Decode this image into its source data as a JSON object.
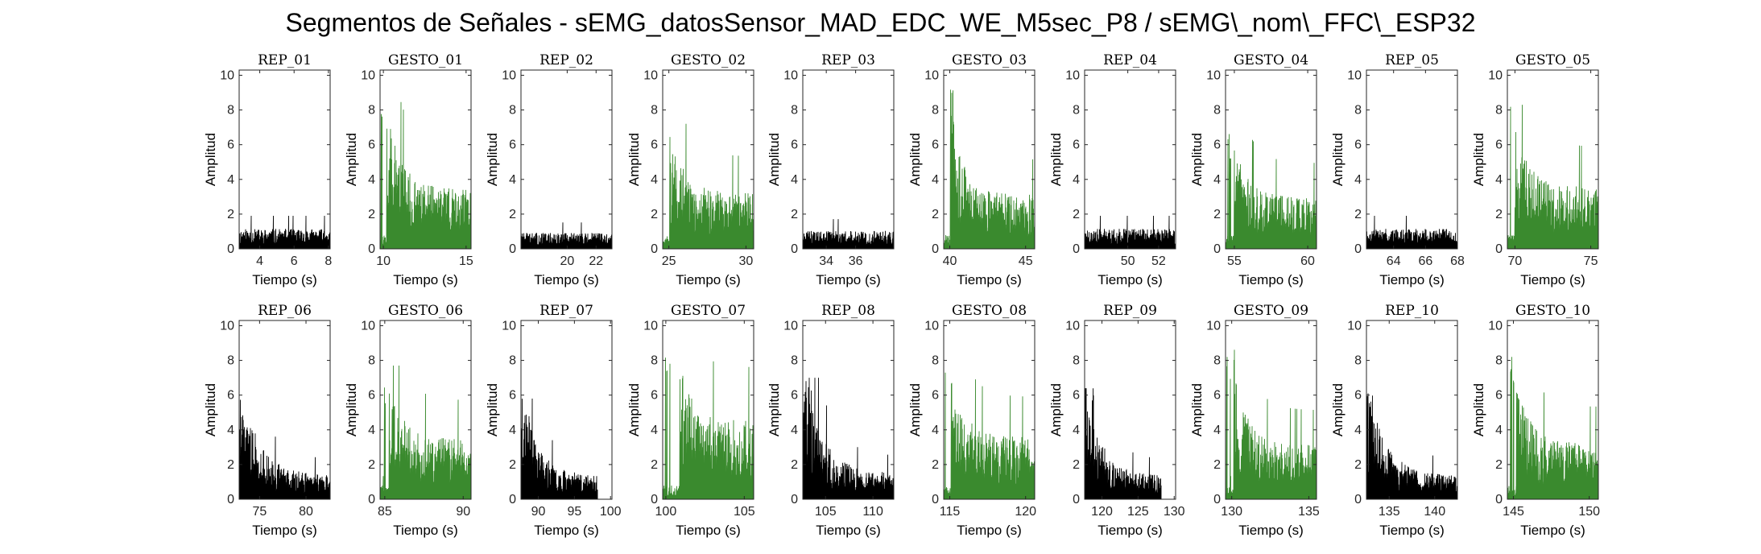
{
  "figure": {
    "title": "Segmentos de Señales - sEMG_datosSensor_MAD_EDC_WE_M5sec_P8 / sEMG\\_nom\\_FFC\\_ESP32"
  },
  "chart_data": {
    "type": "bar",
    "xlabel": "Tiempo (s)",
    "ylabel": "Amplitud",
    "ylim": [
      0,
      10.3
    ],
    "yticks": [
      0,
      2,
      4,
      6,
      8,
      10
    ],
    "grid": false,
    "colors": {
      "rep": "#000000",
      "gesto": "#3a8a2e"
    },
    "panels": [
      {
        "title": "REP_01",
        "kind": "rep",
        "xlim": [
          2.8,
          8.1
        ],
        "xticks": [
          4,
          6,
          8
        ],
        "signal": {
          "start": 2.8,
          "end": 8.1,
          "profile": "flat",
          "base": 1.0,
          "peak": 1.9,
          "seed": 11
        }
      },
      {
        "title": "GESTO_01",
        "kind": "gesto",
        "xlim": [
          9.8,
          15.3
        ],
        "xticks": [
          10,
          15
        ],
        "signal": {
          "start": 9.8,
          "end": 15.3,
          "profile": "gesture",
          "onset": 10.2,
          "base": 3.0,
          "peak": 9.7,
          "seed": 12
        }
      },
      {
        "title": "REP_02",
        "kind": "rep",
        "xlim": [
          16.8,
          23.1
        ],
        "xticks": [
          20,
          22
        ],
        "signal": {
          "start": 16.8,
          "end": 23.1,
          "profile": "flat",
          "base": 0.8,
          "peak": 2.4,
          "seed": 13
        }
      },
      {
        "title": "GESTO_02",
        "kind": "gesto",
        "xlim": [
          24.6,
          30.5
        ],
        "xticks": [
          25,
          30
        ],
        "signal": {
          "start": 24.6,
          "end": 30.5,
          "profile": "gesture",
          "onset": 25.1,
          "base": 2.8,
          "peak": 7.9,
          "seed": 14
        }
      },
      {
        "title": "REP_03",
        "kind": "rep",
        "xlim": [
          32.4,
          38.6
        ],
        "xticks": [
          34,
          36
        ],
        "signal": {
          "start": 32.4,
          "end": 38.6,
          "profile": "flat",
          "base": 0.9,
          "peak": 2.3,
          "seed": 15
        }
      },
      {
        "title": "GESTO_03",
        "kind": "gesto",
        "xlim": [
          39.6,
          45.6
        ],
        "xticks": [
          40,
          45
        ],
        "signal": {
          "start": 39.6,
          "end": 45.6,
          "profile": "gesture",
          "onset": 40.1,
          "base": 2.7,
          "peak": 10.0,
          "seed": 16
        }
      },
      {
        "title": "REP_04",
        "kind": "rep",
        "xlim": [
          47.2,
          53.1
        ],
        "xticks": [
          50,
          52
        ],
        "signal": {
          "start": 47.2,
          "end": 53.1,
          "profile": "flat",
          "base": 1.0,
          "peak": 2.4,
          "seed": 17
        }
      },
      {
        "title": "GESTO_04",
        "kind": "gesto",
        "xlim": [
          54.4,
          60.6
        ],
        "xticks": [
          55,
          60
        ],
        "signal": {
          "start": 54.4,
          "end": 60.6,
          "profile": "gesture",
          "onset": 55.0,
          "base": 2.6,
          "peak": 7.0,
          "seed": 18
        }
      },
      {
        "title": "REP_05",
        "kind": "rep",
        "xlim": [
          62.3,
          68.0
        ],
        "xticks": [
          64,
          66,
          68
        ],
        "signal": {
          "start": 62.3,
          "end": 68.0,
          "profile": "flat",
          "base": 1.0,
          "peak": 2.4,
          "seed": 19
        }
      },
      {
        "title": "GESTO_05",
        "kind": "gesto",
        "xlim": [
          69.5,
          75.5
        ],
        "xticks": [
          70,
          75
        ],
        "signal": {
          "start": 69.5,
          "end": 75.5,
          "profile": "gesture",
          "onset": 70.0,
          "base": 3.1,
          "peak": 8.3,
          "seed": 20
        }
      },
      {
        "title": "REP_06",
        "kind": "rep",
        "xlim": [
          72.8,
          82.6
        ],
        "xticks": [
          75,
          80
        ],
        "signal": {
          "start": 72.8,
          "end": 82.6,
          "profile": "decay",
          "base": 1.2,
          "peak": 6.3,
          "seed": 21
        }
      },
      {
        "title": "GESTO_06",
        "kind": "gesto",
        "xlim": [
          84.7,
          90.5
        ],
        "xticks": [
          85,
          90
        ],
        "signal": {
          "start": 84.7,
          "end": 90.5,
          "profile": "gesture",
          "onset": 85.3,
          "base": 3.0,
          "peak": 7.7,
          "seed": 22
        }
      },
      {
        "title": "REP_07",
        "kind": "rep",
        "xlim": [
          87.6,
          100.2
        ],
        "xticks": [
          90,
          95,
          100
        ],
        "signal": {
          "start": 87.6,
          "end": 98.2,
          "profile": "decay",
          "base": 1.2,
          "peak": 5.8,
          "seed": 23
        }
      },
      {
        "title": "GESTO_07",
        "kind": "gesto",
        "xlim": [
          99.8,
          105.6
        ],
        "xticks": [
          100,
          105
        ],
        "signal": {
          "start": 99.8,
          "end": 105.6,
          "profile": "gesture",
          "onset": 100.9,
          "base": 4.0,
          "peak": 8.6,
          "seed": 24
        }
      },
      {
        "title": "REP_08",
        "kind": "rep",
        "xlim": [
          102.6,
          112.2
        ],
        "xticks": [
          105,
          110
        ],
        "signal": {
          "start": 102.6,
          "end": 112.2,
          "profile": "decay",
          "base": 1.3,
          "peak": 7.0,
          "seed": 25
        }
      },
      {
        "title": "GESTO_08",
        "kind": "gesto",
        "xlim": [
          114.6,
          120.6
        ],
        "xticks": [
          115,
          120
        ],
        "signal": {
          "start": 114.6,
          "end": 120.6,
          "profile": "gesture",
          "onset": 115.1,
          "base": 3.1,
          "peak": 8.2,
          "seed": 26
        }
      },
      {
        "title": "REP_09",
        "kind": "rep",
        "xlim": [
          117.6,
          130.2
        ],
        "xticks": [
          120,
          125,
          130
        ],
        "signal": {
          "start": 117.6,
          "end": 128.2,
          "profile": "decay",
          "base": 1.2,
          "peak": 6.4,
          "seed": 27
        }
      },
      {
        "title": "GESTO_09",
        "kind": "gesto",
        "xlim": [
          129.6,
          135.5
        ],
        "xticks": [
          130,
          135
        ],
        "signal": {
          "start": 129.6,
          "end": 135.5,
          "profile": "gesture",
          "onset": 130.2,
          "base": 2.7,
          "peak": 8.9,
          "seed": 28
        }
      },
      {
        "title": "REP_10",
        "kind": "rep",
        "xlim": [
          132.5,
          142.5
        ],
        "xticks": [
          135,
          140
        ],
        "signal": {
          "start": 132.5,
          "end": 142.5,
          "profile": "decay",
          "base": 1.2,
          "peak": 6.1,
          "seed": 29
        }
      },
      {
        "title": "GESTO_10",
        "kind": "gesto",
        "xlim": [
          144.6,
          150.6
        ],
        "xticks": [
          145,
          150
        ],
        "signal": {
          "start": 144.6,
          "end": 150.6,
          "profile": "gesture",
          "onset": 145.2,
          "base": 2.8,
          "peak": 8.3,
          "seed": 30
        }
      }
    ]
  }
}
